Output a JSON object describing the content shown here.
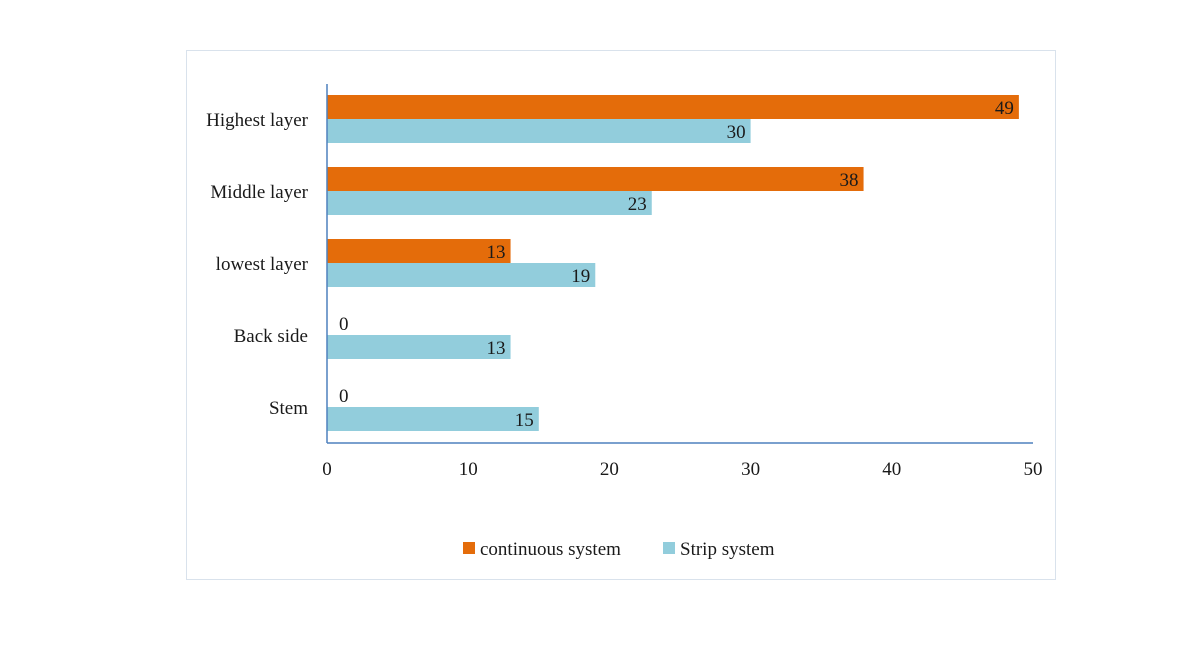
{
  "chart_data": {
    "type": "bar",
    "orientation": "horizontal",
    "title": "",
    "xlabel": "",
    "ylabel": "",
    "categories": [
      "Highest layer",
      "Middle layer",
      "lowest layer",
      "Back side",
      "Stem"
    ],
    "series": [
      {
        "name": "continuous system",
        "color": "#e46c0a",
        "values": [
          49,
          38,
          13,
          0,
          0
        ]
      },
      {
        "name": "Strip system",
        "color": "#92cddc",
        "values": [
          30,
          23,
          19,
          13,
          15
        ]
      }
    ],
    "xlim": [
      0,
      50
    ],
    "xticks": [
      0,
      10,
      20,
      30,
      40,
      50
    ],
    "grid": false,
    "legend_position": "bottom",
    "axis_color": "#4f81bd"
  }
}
